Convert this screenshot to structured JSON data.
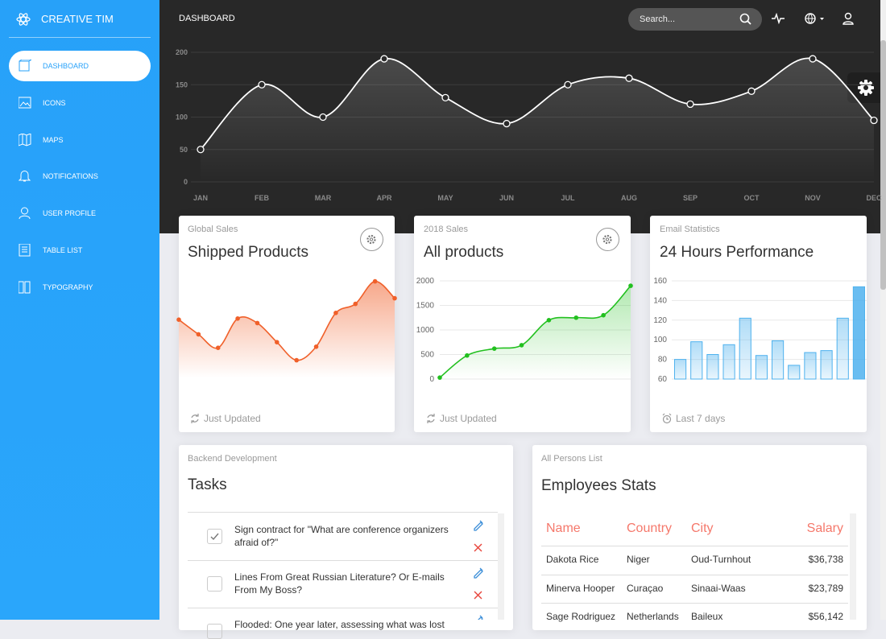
{
  "sidebar": {
    "brand": "CREATIVE TIM",
    "items": [
      "DASHBOARD",
      "ICONS",
      "MAPS",
      "NOTIFICATIONS",
      "USER PROFILE",
      "TABLE LIST",
      "TYPOGRAPHY"
    ]
  },
  "header": {
    "title": "DASHBOARD",
    "search": "Search..."
  },
  "chart_data": [
    {
      "type": "line",
      "categories": [
        "JAN",
        "FEB",
        "MAR",
        "APR",
        "MAY",
        "JUN",
        "JUL",
        "AUG",
        "SEP",
        "OCT",
        "NOV",
        "DEC"
      ],
      "values": [
        50,
        150,
        100,
        190,
        130,
        90,
        150,
        160,
        120,
        140,
        190,
        95
      ],
      "color": "#ffffff",
      "ylim": [
        0,
        200
      ],
      "yticks": [
        0,
        50,
        100,
        150,
        200
      ],
      "grid": true
    },
    {
      "type": "line",
      "subtitle": "Global Sales",
      "title": "Shipped Products",
      "footer": "Just Updated",
      "values": [
        52,
        39,
        27,
        53,
        49,
        32,
        16,
        28,
        58,
        66,
        86,
        71
      ],
      "color": "#f0602a",
      "ylim": [
        0,
        100
      ]
    },
    {
      "type": "line",
      "subtitle": "2018 Sales",
      "title": "All products",
      "footer": "Just Updated",
      "values": [
        30,
        480,
        620,
        690,
        1200,
        1250,
        1300,
        1900
      ],
      "color": "#22c01f",
      "ylim": [
        0,
        2000
      ],
      "yticks": [
        0,
        500,
        1000,
        1500,
        2000
      ],
      "grid": true
    },
    {
      "type": "bar",
      "subtitle": "Email Statistics",
      "title": "24 Hours Performance",
      "footer": "Last 7 days",
      "values": [
        80,
        98,
        85,
        95,
        122,
        84,
        99,
        74,
        87,
        89,
        122,
        154
      ],
      "color": "#4fb2ee",
      "ylim": [
        60,
        160
      ],
      "yticks": [
        60,
        80,
        100,
        120,
        140,
        160
      ],
      "grid": true
    }
  ],
  "tasks": {
    "subtitle": "Backend Development",
    "title": "Tasks",
    "items": [
      {
        "text": "Sign contract for \"What are conference organizers afraid of?\"",
        "checked": true
      },
      {
        "text": "Lines From Great Russian Literature? Or E-mails From My Boss?",
        "checked": false
      },
      {
        "text": "Flooded: One year later, assessing what was lost",
        "checked": false
      }
    ]
  },
  "employees": {
    "subtitle": "All Persons List",
    "title": "Employees Stats",
    "columns": [
      "Name",
      "Country",
      "City",
      "Salary"
    ],
    "rows": [
      [
        "Dakota Rice",
        "Niger",
        "Oud-Turnhout",
        "$36,738"
      ],
      [
        "Minerva Hooper",
        "Curaçao",
        "Sinaai-Waas",
        "$23,789"
      ],
      [
        "Sage Rodriguez",
        "Netherlands",
        "Baileux",
        "$56,142"
      ]
    ]
  }
}
